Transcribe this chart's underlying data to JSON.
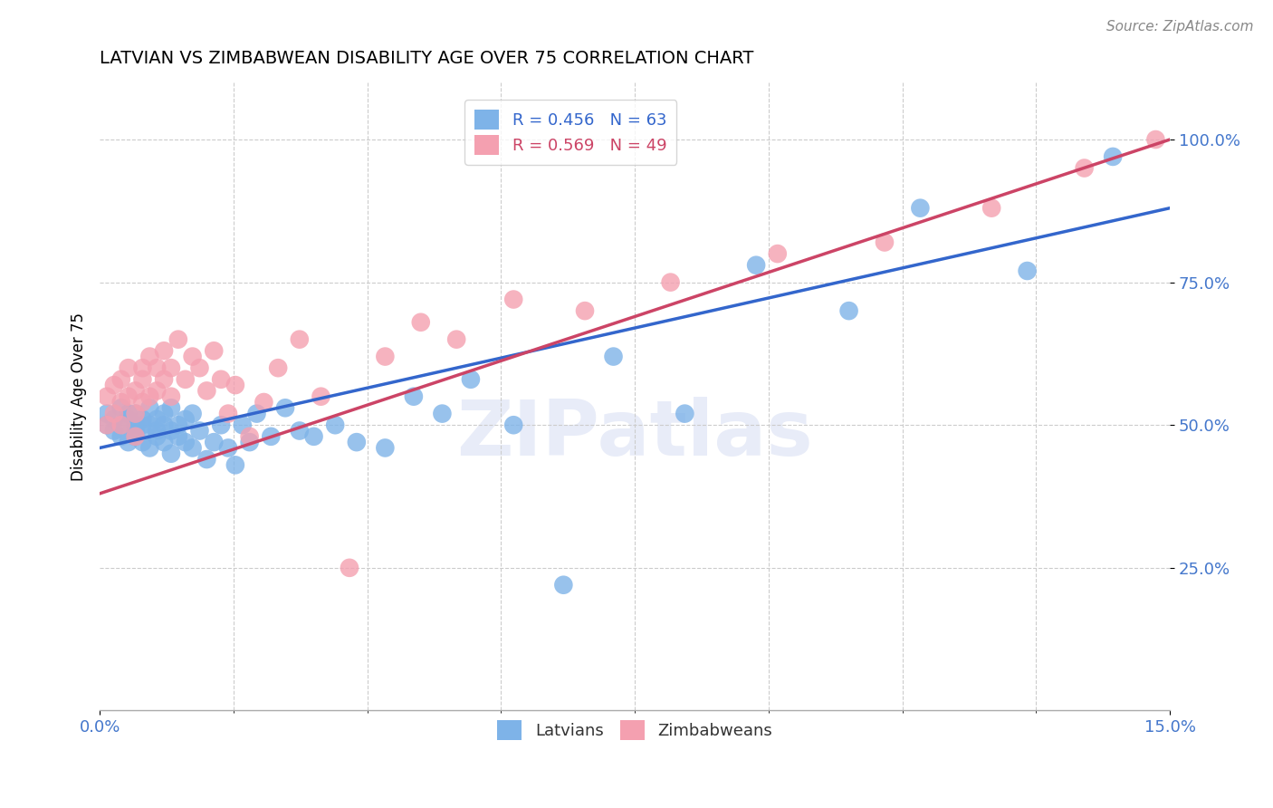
{
  "title": "LATVIAN VS ZIMBABWEAN DISABILITY AGE OVER 75 CORRELATION CHART",
  "source": "Source: ZipAtlas.com",
  "ylabel": "Disability Age Over 75",
  "ytick_labels": [
    "25.0%",
    "50.0%",
    "75.0%",
    "100.0%"
  ],
  "ytick_values": [
    0.25,
    0.5,
    0.75,
    1.0
  ],
  "xmin": 0.0,
  "xmax": 0.15,
  "ymin": 0.0,
  "ymax": 1.1,
  "latvian_R": 0.456,
  "latvian_N": 63,
  "zimbabwean_R": 0.569,
  "zimbabwean_N": 49,
  "latvian_color": "#7EB3E8",
  "zimbabwean_color": "#F4A0B0",
  "latvian_line_color": "#3366CC",
  "zimbabwean_line_color": "#CC4466",
  "background_color": "#FFFFFF",
  "watermark_color": "#E8ECF8",
  "latvian_x": [
    0.001,
    0.001,
    0.002,
    0.002,
    0.003,
    0.003,
    0.003,
    0.004,
    0.004,
    0.004,
    0.005,
    0.005,
    0.005,
    0.005,
    0.006,
    0.006,
    0.006,
    0.007,
    0.007,
    0.007,
    0.008,
    0.008,
    0.008,
    0.009,
    0.009,
    0.009,
    0.01,
    0.01,
    0.01,
    0.011,
    0.011,
    0.012,
    0.012,
    0.013,
    0.013,
    0.014,
    0.015,
    0.016,
    0.017,
    0.018,
    0.019,
    0.02,
    0.021,
    0.022,
    0.024,
    0.026,
    0.028,
    0.03,
    0.033,
    0.036,
    0.04,
    0.044,
    0.048,
    0.052,
    0.058,
    0.065,
    0.072,
    0.082,
    0.092,
    0.105,
    0.115,
    0.13,
    0.142
  ],
  "latvian_y": [
    0.5,
    0.52,
    0.49,
    0.51,
    0.5,
    0.48,
    0.53,
    0.47,
    0.51,
    0.52,
    0.5,
    0.49,
    0.48,
    0.52,
    0.51,
    0.47,
    0.5,
    0.5,
    0.46,
    0.53,
    0.49,
    0.51,
    0.48,
    0.52,
    0.47,
    0.5,
    0.49,
    0.45,
    0.53,
    0.5,
    0.48,
    0.51,
    0.47,
    0.52,
    0.46,
    0.49,
    0.44,
    0.47,
    0.5,
    0.46,
    0.43,
    0.5,
    0.47,
    0.52,
    0.48,
    0.53,
    0.49,
    0.48,
    0.5,
    0.47,
    0.46,
    0.55,
    0.52,
    0.58,
    0.5,
    0.22,
    0.62,
    0.52,
    0.78,
    0.7,
    0.88,
    0.77,
    0.97
  ],
  "zimbabwean_x": [
    0.001,
    0.001,
    0.002,
    0.002,
    0.003,
    0.003,
    0.003,
    0.004,
    0.004,
    0.005,
    0.005,
    0.005,
    0.006,
    0.006,
    0.006,
    0.007,
    0.007,
    0.008,
    0.008,
    0.009,
    0.009,
    0.01,
    0.01,
    0.011,
    0.012,
    0.013,
    0.014,
    0.015,
    0.016,
    0.017,
    0.018,
    0.019,
    0.021,
    0.023,
    0.025,
    0.028,
    0.031,
    0.035,
    0.04,
    0.045,
    0.05,
    0.058,
    0.068,
    0.08,
    0.095,
    0.11,
    0.125,
    0.138,
    0.148
  ],
  "zimbabwean_y": [
    0.5,
    0.55,
    0.52,
    0.57,
    0.5,
    0.54,
    0.58,
    0.55,
    0.6,
    0.52,
    0.56,
    0.48,
    0.6,
    0.54,
    0.58,
    0.55,
    0.62,
    0.6,
    0.56,
    0.63,
    0.58,
    0.55,
    0.6,
    0.65,
    0.58,
    0.62,
    0.6,
    0.56,
    0.63,
    0.58,
    0.52,
    0.57,
    0.48,
    0.54,
    0.6,
    0.65,
    0.55,
    0.25,
    0.62,
    0.68,
    0.65,
    0.72,
    0.7,
    0.75,
    0.8,
    0.82,
    0.88,
    0.95,
    1.0
  ],
  "latvian_trendline": [
    0.46,
    0.88
  ],
  "zimbabwean_trendline": [
    0.38,
    1.0
  ]
}
